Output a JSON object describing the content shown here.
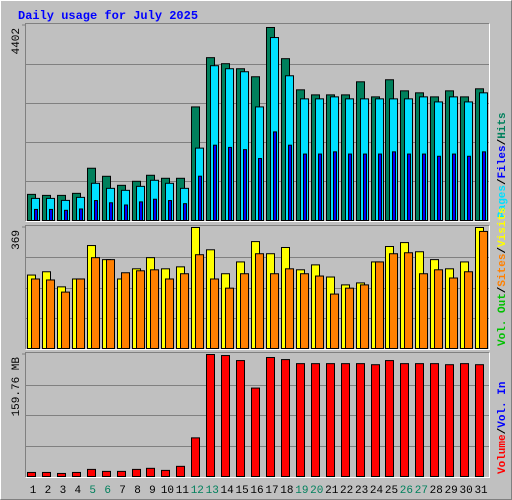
{
  "title": "Daily usage for July 2025",
  "separator": "/",
  "categories": [
    "1",
    "2",
    "3",
    "4",
    "5",
    "6",
    "7",
    "8",
    "9",
    "10",
    "11",
    "12",
    "13",
    "14",
    "15",
    "16",
    "17",
    "18",
    "19",
    "20",
    "21",
    "22",
    "23",
    "24",
    "25",
    "26",
    "27",
    "28",
    "29",
    "30",
    "31"
  ],
  "category_colors": [
    "#000000",
    "#000000",
    "#000000",
    "#000000",
    "#00805c",
    "#00805c",
    "#000000",
    "#000000",
    "#000000",
    "#000000",
    "#000000",
    "#00805c",
    "#00805c",
    "#000000",
    "#000000",
    "#000000",
    "#000000",
    "#000000",
    "#00805c",
    "#00805c",
    "#000000",
    "#000000",
    "#000000",
    "#000000",
    "#000000",
    "#00805c",
    "#00805c",
    "#000000",
    "#000000",
    "#000000",
    "#000000"
  ],
  "chart_data": [
    {
      "type": "bar",
      "ylim": [
        0,
        4402
      ],
      "yticks": [
        4402
      ],
      "grid_divisions": 5,
      "series": [
        {
          "name": "Hits",
          "color": "#00805c",
          "values": [
            590,
            567,
            567,
            613,
            1180,
            998,
            794,
            885,
            1021,
            953,
            953,
            2564,
            3676,
            3540,
            3426,
            3245,
            4357,
            3653,
            2950,
            2836,
            2836,
            2836,
            3131,
            2791,
            3177,
            2927,
            2882,
            2791,
            2927,
            2791,
            2973
          ]
        },
        {
          "name": "Pages",
          "color": "#00e0ff",
          "values": [
            499,
            499,
            454,
            522,
            840,
            726,
            681,
            771,
            908,
            840,
            726,
            1634,
            3494,
            3426,
            3358,
            2564,
            4130,
            3267,
            2746,
            2746,
            2791,
            2746,
            2746,
            2746,
            2746,
            2746,
            2791,
            2677,
            2791,
            2677,
            2882
          ]
        },
        {
          "name": "Files",
          "color": "#0000ff",
          "values": [
            250,
            250,
            230,
            260,
            450,
            400,
            350,
            420,
            480,
            450,
            380,
            1000,
            1700,
            1650,
            1600,
            1400,
            2000,
            1700,
            1500,
            1500,
            1550,
            1500,
            1500,
            1500,
            1550,
            1500,
            1500,
            1450,
            1500,
            1450,
            1550
          ]
        }
      ],
      "legend_order": [
        "Pages",
        "Files",
        "Hits"
      ]
    },
    {
      "type": "bar",
      "ylim": [
        0,
        369
      ],
      "yticks": [
        369
      ],
      "grid_divisions": 4,
      "series": [
        {
          "name": "Visits",
          "color": "#ffff00",
          "values": [
            224,
            234,
            188,
            212,
            314,
            271,
            212,
            243,
            277,
            243,
            249,
            369,
            301,
            228,
            264,
            326,
            289,
            308,
            240,
            255,
            218,
            194,
            200,
            264,
            311,
            323,
            295,
            271,
            243,
            264,
            369
          ]
        },
        {
          "name": "Sites",
          "color": "#ff8000",
          "values": [
            212,
            209,
            172,
            212,
            277,
            271,
            231,
            237,
            240,
            212,
            228,
            286,
            212,
            184,
            228,
            289,
            228,
            243,
            228,
            221,
            166,
            184,
            194,
            264,
            289,
            292,
            228,
            240,
            215,
            234,
            357
          ]
        }
      ],
      "extra_legend": [
        {
          "name": "Vol. Out",
          "color": "#00c000"
        }
      ],
      "legend_order": [
        "Vol. Out",
        "Sites",
        "Visits"
      ]
    },
    {
      "type": "bar",
      "ylim": [
        0,
        159.76
      ],
      "yticks": [
        {
          "value": 159.76,
          "label": "159.76 MB"
        }
      ],
      "grid_divisions": 4,
      "series": [
        {
          "name": "Volume",
          "color": "#ff0000",
          "values": [
            5.3,
            5.3,
            4.0,
            5.3,
            9.3,
            6.7,
            6.7,
            9.3,
            10.7,
            8.0,
            13.3,
            50.6,
            159.76,
            158.4,
            151.8,
            115.8,
            155.8,
            153.1,
            147.8,
            147.8,
            147.8,
            147.8,
            147.8,
            146.4,
            151.8,
            147.8,
            147.8,
            147.8,
            146.4,
            147.8,
            146.4
          ]
        }
      ],
      "extra_legend": [
        {
          "name": "Vol. In",
          "color": "#0000ff"
        }
      ],
      "legend_order": [
        "Volume",
        "Vol. In"
      ]
    }
  ]
}
